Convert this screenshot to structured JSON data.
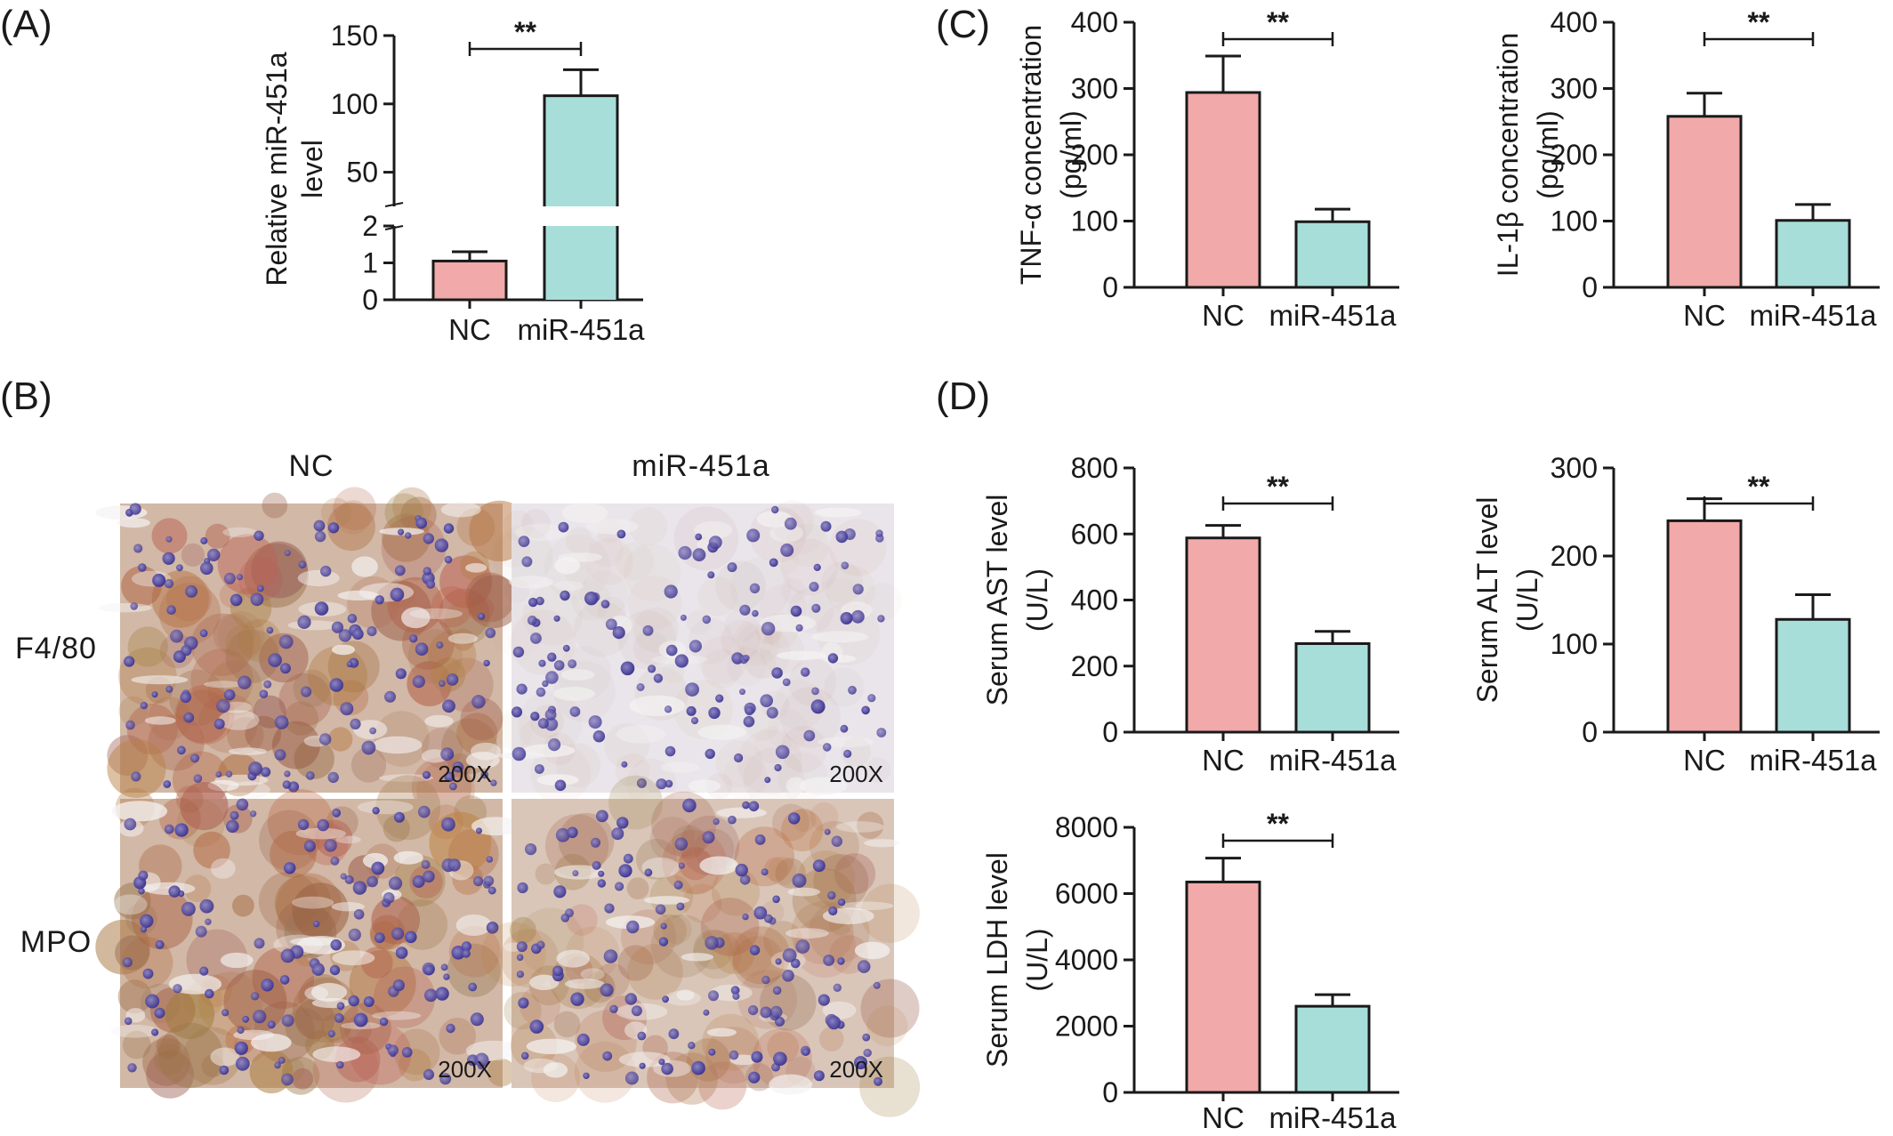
{
  "colors": {
    "nc": "#f2a9a9",
    "mir": "#a8ded9",
    "axis": "#1a1a1a"
  },
  "panel_labels": {
    "A": "(A)",
    "B": "(B)",
    "C": "(C)",
    "D": "(D)"
  },
  "micrographs": {
    "col_labels": [
      "NC",
      "miR-451a"
    ],
    "row_labels": [
      "F4/80",
      "MPO"
    ],
    "magnification": "200X",
    "stain_levels": {
      "F4/80": {
        "NC": "high",
        "miR-451a": "low"
      },
      "MPO": {
        "NC": "high",
        "miR-451a": "medium"
      }
    }
  },
  "chart_data": [
    {
      "id": "mir451a",
      "type": "bar",
      "categories": [
        "NC",
        "miR-451a"
      ],
      "values": [
        1.05,
        106
      ],
      "errors": [
        0.25,
        19
      ],
      "ylabel": [
        "Relative miR-451a",
        "level"
      ],
      "axis_break": {
        "lower": [
          0,
          2
        ],
        "upper": [
          25,
          150
        ]
      },
      "ticks_lower": [
        "0",
        "1",
        "2"
      ],
      "ticks_upper": [
        "50",
        "100",
        "150"
      ],
      "significance": "**"
    },
    {
      "id": "tnf",
      "type": "bar",
      "categories": [
        "NC",
        "miR-451a"
      ],
      "values": [
        294,
        99
      ],
      "errors": [
        55,
        19
      ],
      "ylim": [
        0,
        400
      ],
      "ticks": [
        "0",
        "100",
        "200",
        "300",
        "400"
      ],
      "ylabel": [
        "TNF-α concentration",
        "(pg/ml)"
      ],
      "significance": "**"
    },
    {
      "id": "il1b",
      "type": "bar",
      "categories": [
        "NC",
        "miR-451a"
      ],
      "values": [
        258,
        101
      ],
      "errors": [
        35,
        24
      ],
      "ylim": [
        0,
        400
      ],
      "ticks": [
        "0",
        "100",
        "200",
        "300",
        "400"
      ],
      "ylabel": [
        "IL-1β concentration",
        "(pg/ml)"
      ],
      "significance": "**"
    },
    {
      "id": "ast",
      "type": "bar",
      "categories": [
        "NC",
        "miR-451a"
      ],
      "values": [
        588,
        268
      ],
      "errors": [
        38,
        37
      ],
      "ylim": [
        0,
        800
      ],
      "ticks": [
        "0",
        "200",
        "400",
        "600",
        "800"
      ],
      "ylabel": [
        "Serum AST level",
        "(U/L)"
      ],
      "significance": "**"
    },
    {
      "id": "alt",
      "type": "bar",
      "categories": [
        "NC",
        "miR-451a"
      ],
      "values": [
        240,
        128
      ],
      "errors": [
        25,
        28
      ],
      "ylim": [
        0,
        300
      ],
      "ticks": [
        "0",
        "100",
        "200",
        "300"
      ],
      "ylabel": [
        "Serum ALT level",
        "(U/L)"
      ],
      "significance": "**"
    },
    {
      "id": "ldh",
      "type": "bar",
      "categories": [
        "NC",
        "miR-451a"
      ],
      "values": [
        6350,
        2600
      ],
      "errors": [
        720,
        350
      ],
      "ylim": [
        0,
        8000
      ],
      "ticks": [
        "0",
        "2000",
        "4000",
        "6000",
        "8000"
      ],
      "ylabel": [
        "Serum LDH level",
        "(U/L)"
      ],
      "significance": "**"
    }
  ]
}
